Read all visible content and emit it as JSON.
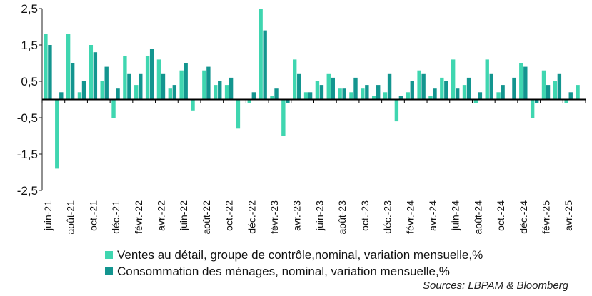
{
  "chart_data": {
    "type": "bar",
    "categories": [
      "juin-21",
      "juil-21",
      "août-21",
      "sept-21",
      "oct-21",
      "nov-21",
      "déc-21",
      "janv-22",
      "févr.-22",
      "mars-22",
      "avr.-22",
      "mai-22",
      "juin-22",
      "juil-22",
      "août-22",
      "sept-22",
      "oct-22",
      "nov-22",
      "déc-22",
      "janv-23",
      "févr.-23",
      "mars-23",
      "avr.-23",
      "mai-23",
      "juin-23",
      "juil-23",
      "août-23",
      "sept-23",
      "oct.-23",
      "nov-23",
      "déc.-23",
      "janv-24",
      "févr.-24",
      "mars-24",
      "avr.-24",
      "mai-24",
      "juin-24",
      "juil-24",
      "août-24",
      "sept-24",
      "oct.-24",
      "nov-24",
      "déc.-24",
      "janv-25",
      "févr.-25",
      "mars-25",
      "avr.-25",
      "mai-25"
    ],
    "tick_labels": [
      "juin-21",
      "août-21",
      "oct.-21",
      "déc.-21",
      "févr.-22",
      "avr.-22",
      "juin-22",
      "août-22",
      "oct.-22",
      "déc.-22",
      "févr.-23",
      "avr.-23",
      "juin-23",
      "août-23",
      "oct.-23",
      "déc.-23",
      "févr.-24",
      "avr.-24",
      "juin-24",
      "août-24",
      "oct.-24",
      "déc.-24",
      "févr.-25",
      "avr.-25"
    ],
    "series": [
      {
        "name": "Ventes au détail, groupe de contrôle,nominal, variation mensuelle,%",
        "color": "#3fd6b0",
        "values": [
          1.8,
          -1.9,
          1.8,
          0.2,
          1.5,
          0.5,
          -0.5,
          1.2,
          0.4,
          1.2,
          1.1,
          0.3,
          0.8,
          -0.3,
          0.8,
          0.4,
          0.4,
          -0.8,
          -0.1,
          2.5,
          0.1,
          -1.0,
          1.1,
          0.2,
          0.5,
          0.7,
          0.3,
          0.2,
          0.3,
          0.1,
          0.2,
          -0.6,
          0.2,
          0.8,
          0.1,
          0.6,
          1.1,
          0.4,
          -0.1,
          1.1,
          0.2,
          0.0,
          1.0,
          -0.5,
          0.8,
          0.5,
          -0.1,
          0.4
        ]
      },
      {
        "name": "Consommation des ménages, nominal, variation mensuelle,%",
        "color": "#13958f",
        "values": [
          1.5,
          0.2,
          1.0,
          0.5,
          1.3,
          0.9,
          0.3,
          0.7,
          0.7,
          1.4,
          0.7,
          0.4,
          1.0,
          0.0,
          0.9,
          0.5,
          0.6,
          0.0,
          0.2,
          1.9,
          0.3,
          -0.1,
          0.7,
          0.2,
          0.4,
          0.6,
          0.3,
          0.6,
          0.4,
          0.4,
          0.7,
          0.1,
          0.5,
          0.7,
          0.3,
          0.5,
          0.3,
          0.6,
          0.2,
          0.7,
          0.4,
          0.6,
          0.9,
          -0.1,
          0.4,
          0.7,
          0.2,
          0.0
        ]
      }
    ],
    "y_ticks": [
      "2,5",
      "1,5",
      "0,5",
      "-0,5",
      "-1,5",
      "-2,5"
    ],
    "ylim": [
      -2.5,
      2.5
    ],
    "xlabel": "",
    "ylabel": "",
    "grid": false,
    "legend_position": "bottom"
  },
  "source": "Sources: LBPAM & Bloomberg"
}
